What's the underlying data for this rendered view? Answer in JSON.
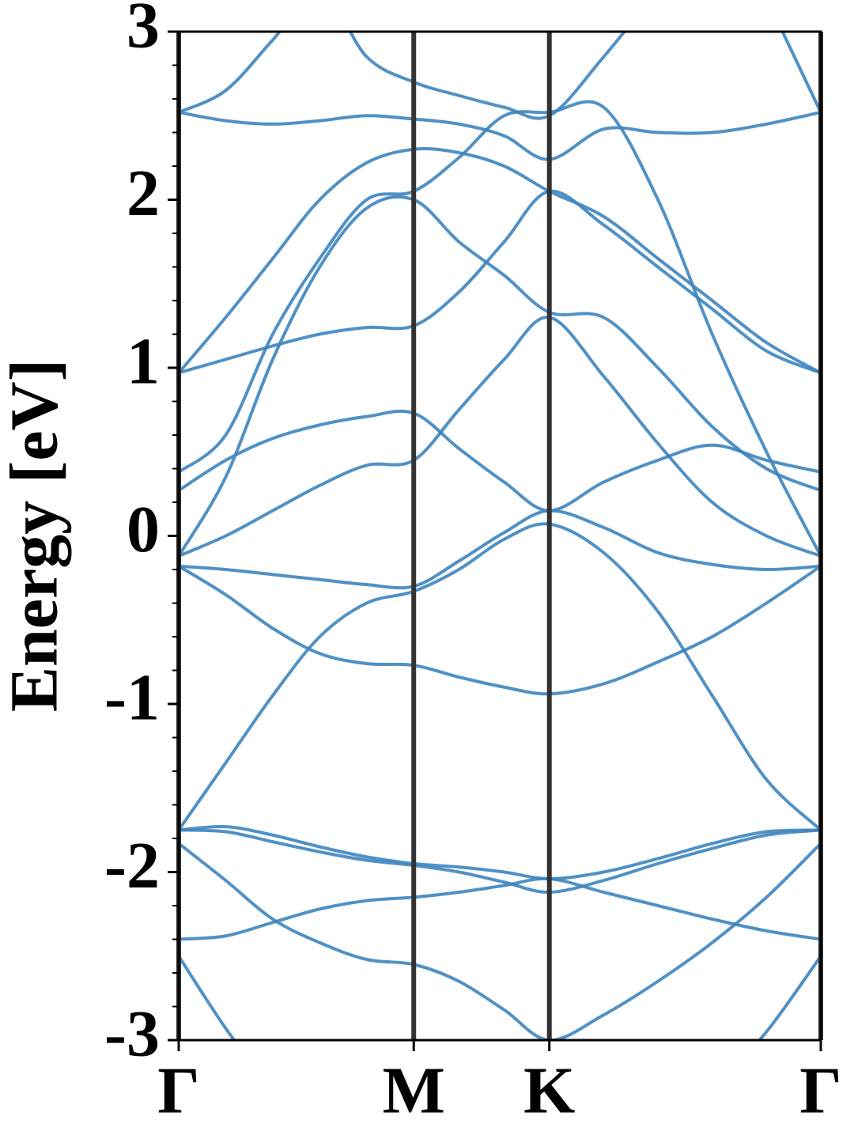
{
  "chart_data": {
    "type": "line",
    "ylabel": "Energy [eV]",
    "xlim": [
      0,
      2.732
    ],
    "xticks": [
      {
        "value": 0,
        "label": "Γ"
      },
      {
        "value": 1,
        "label": "M"
      },
      {
        "value": 1.577,
        "label": "K"
      },
      {
        "value": 2.732,
        "label": "Γ"
      }
    ],
    "ylim": [
      -3,
      3
    ],
    "yticks": [
      -3,
      -2,
      -1,
      0,
      1,
      2,
      3
    ],
    "yminorticks": [
      -2.8,
      -2.6,
      -2.4,
      -2.2,
      -1.8,
      -1.6,
      -1.4,
      -1.2,
      -0.8,
      -0.6,
      -0.4,
      -0.2,
      0.2,
      0.4,
      0.6,
      0.8,
      1.2,
      1.4,
      1.6,
      1.8,
      2.2,
      2.4,
      2.6,
      2.8
    ],
    "color": "#3d85bf",
    "x": [
      0,
      0.2,
      0.4,
      0.6,
      0.8,
      1.0,
      1.192,
      1.385,
      1.577,
      1.808,
      2.039,
      2.27,
      2.501,
      2.732
    ],
    "series": [
      {
        "values": [
          -2.5,
          -2.93,
          -3.3,
          null,
          null,
          null,
          null,
          null,
          null,
          null,
          null,
          -3.3,
          -2.95,
          -2.5
        ]
      },
      {
        "values": [
          -1.83,
          -2.05,
          -2.28,
          -2.42,
          -2.52,
          -2.55,
          -2.65,
          -2.82,
          -3.0,
          -2.85,
          -2.65,
          -2.42,
          -2.15,
          -1.83
        ]
      },
      {
        "values": [
          -2.4,
          -2.38,
          -2.3,
          -2.22,
          -2.17,
          -2.15,
          -2.12,
          -2.08,
          -2.04,
          -2.12,
          -2.2,
          -2.28,
          -2.35,
          -2.4
        ]
      },
      {
        "values": [
          -1.75,
          -1.76,
          -1.82,
          -1.88,
          -1.93,
          -1.96,
          -2.0,
          -2.06,
          -2.12,
          -2.05,
          -1.95,
          -1.86,
          -1.78,
          -1.75
        ]
      },
      {
        "values": [
          -1.75,
          -1.73,
          -1.78,
          -1.85,
          -1.91,
          -1.95,
          -1.97,
          -2.0,
          -2.04,
          -2.0,
          -1.92,
          -1.83,
          -1.76,
          -1.75
        ]
      },
      {
        "values": [
          -1.75,
          -1.35,
          -0.95,
          -0.6,
          -0.4,
          -0.33,
          -0.2,
          -0.02,
          0.07,
          -0.1,
          -0.45,
          -0.95,
          -1.45,
          -1.75
        ]
      },
      {
        "values": [
          -0.18,
          -0.35,
          -0.55,
          -0.7,
          -0.76,
          -0.77,
          -0.84,
          -0.9,
          -0.94,
          -0.88,
          -0.75,
          -0.6,
          -0.4,
          -0.18
        ]
      },
      {
        "values": [
          -0.18,
          -0.2,
          -0.23,
          -0.26,
          -0.29,
          -0.3,
          -0.15,
          0.02,
          0.15,
          0.05,
          -0.1,
          -0.17,
          -0.2,
          -0.18
        ]
      },
      {
        "values": [
          -0.12,
          0.0,
          0.15,
          0.3,
          0.42,
          0.45,
          0.75,
          1.05,
          1.3,
          0.95,
          0.55,
          0.2,
          0.0,
          -0.12
        ]
      },
      {
        "values": [
          0.27,
          0.45,
          0.58,
          0.66,
          0.71,
          0.73,
          0.52,
          0.32,
          0.15,
          0.32,
          0.45,
          0.54,
          0.45,
          0.38
        ]
      },
      {
        "values": [
          -0.12,
          0.35,
          1.05,
          1.6,
          1.95,
          2.0,
          1.75,
          1.55,
          1.33,
          1.3,
          1.0,
          0.65,
          0.4,
          0.27
        ]
      },
      {
        "values": [
          0.38,
          0.6,
          1.2,
          1.65,
          2.0,
          2.05,
          2.25,
          2.5,
          2.52,
          2.55,
          2.0,
          1.2,
          0.5,
          -0.12
        ]
      },
      {
        "values": [
          0.97,
          1.05,
          1.13,
          1.2,
          1.24,
          1.25,
          1.45,
          1.75,
          2.05,
          1.85,
          1.6,
          1.35,
          1.1,
          0.97
        ]
      },
      {
        "values": [
          0.97,
          1.3,
          1.65,
          2.0,
          2.22,
          2.3,
          2.28,
          2.2,
          2.05,
          1.9,
          1.65,
          1.4,
          1.15,
          0.97
        ]
      },
      {
        "values": [
          2.52,
          2.47,
          2.45,
          2.47,
          2.5,
          2.48,
          2.45,
          2.38,
          2.24,
          2.42,
          2.4,
          2.4,
          2.45,
          2.52
        ]
      },
      {
        "values": [
          2.52,
          2.65,
          2.95,
          3.25,
          2.85,
          2.7,
          2.62,
          2.55,
          2.5,
          2.85,
          3.25,
          null,
          3.2,
          2.52
        ]
      }
    ]
  }
}
